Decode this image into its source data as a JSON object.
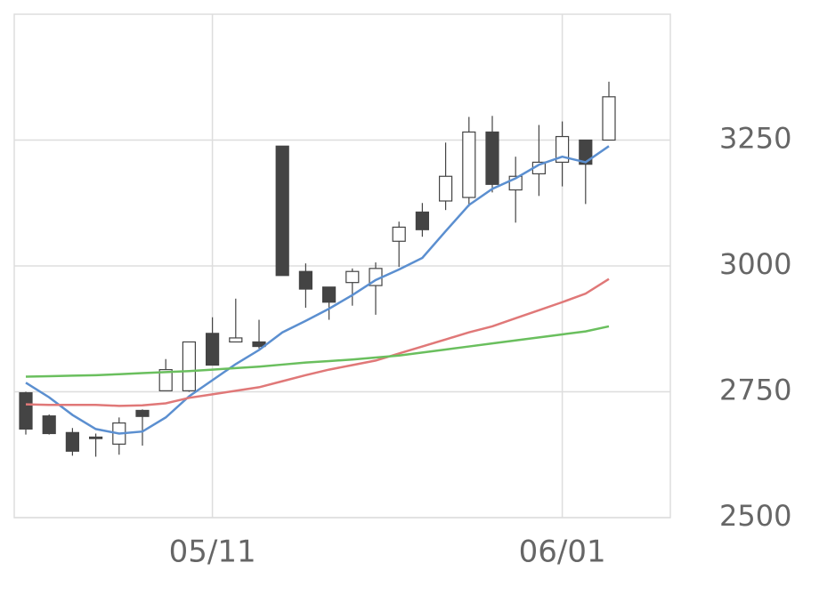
{
  "chart_data": {
    "type": "candlestick",
    "categories": [
      null,
      null,
      null,
      null,
      null,
      null,
      null,
      null,
      "05/11",
      null,
      null,
      null,
      null,
      null,
      null,
      null,
      null,
      null,
      null,
      null,
      null,
      null,
      null,
      "06/01",
      null,
      null
    ],
    "open": [
      2748,
      2702,
      2669,
      2660,
      2646,
      2713,
      2752,
      2752,
      2866,
      2849,
      2849,
      3238,
      2989,
      2958,
      2967,
      2961,
      3049,
      3107,
      3129,
      3136,
      3266,
      3151,
      3183,
      3206,
      3250,
      3250
    ],
    "high": [
      2750,
      2705,
      2678,
      2667,
      2699,
      2715,
      2815,
      2849,
      2898,
      2935,
      2893,
      3238,
      3005,
      2958,
      2995,
      3007,
      3088,
      3125,
      3245,
      3296,
      3298,
      3217,
      3280,
      3287,
      3250,
      3366
    ],
    "low": [
      2665,
      2665,
      2623,
      2621,
      2625,
      2643,
      2752,
      2750,
      2803,
      2849,
      2836,
      2981,
      2917,
      2893,
      2921,
      2903,
      2998,
      3058,
      3111,
      3118,
      3146,
      3086,
      3139,
      3158,
      3123,
      3250
    ],
    "close": [
      2676,
      2667,
      2632,
      2657,
      2688,
      2701,
      2794,
      2849,
      2803,
      2857,
      2840,
      2981,
      2954,
      2928,
      2989,
      2995,
      3077,
      3072,
      3178,
      3266,
      3162,
      3178,
      3206,
      3257,
      3202,
      3336
    ],
    "up_color": "#ffffff",
    "down_color": "#444444",
    "wick_color": "#444444",
    "series": [
      {
        "color": "#5b8fd0",
        "values": [
          2768,
          2739,
          2704,
          2676,
          2667,
          2671,
          2699,
          2741,
          2773,
          2805,
          2833,
          2868,
          2891,
          2915,
          2942,
          2972,
          2993,
          3016,
          3069,
          3121,
          3153,
          3174,
          3201,
          3217,
          3206,
          3238
        ]
      },
      {
        "color": "#e07878",
        "values": [
          2725,
          2724,
          2724,
          2724,
          2722,
          2723,
          2727,
          2738,
          2745,
          2752,
          2759,
          2771,
          2783,
          2794,
          2803,
          2812,
          2826,
          2840,
          2854,
          2868,
          2880,
          2896,
          2912,
          2928,
          2945,
          2974
        ]
      },
      {
        "color": "#6abf5e",
        "values": [
          2780,
          2781,
          2782,
          2783,
          2785,
          2787,
          2789,
          2791,
          2794,
          2797,
          2800,
          2804,
          2808,
          2811,
          2814,
          2818,
          2822,
          2828,
          2834,
          2840,
          2846,
          2852,
          2858,
          2864,
          2870,
          2880
        ]
      }
    ],
    "ylim": [
      2500,
      3500
    ],
    "yticks": [
      2500,
      2750,
      3000,
      3250
    ],
    "grid": true
  }
}
